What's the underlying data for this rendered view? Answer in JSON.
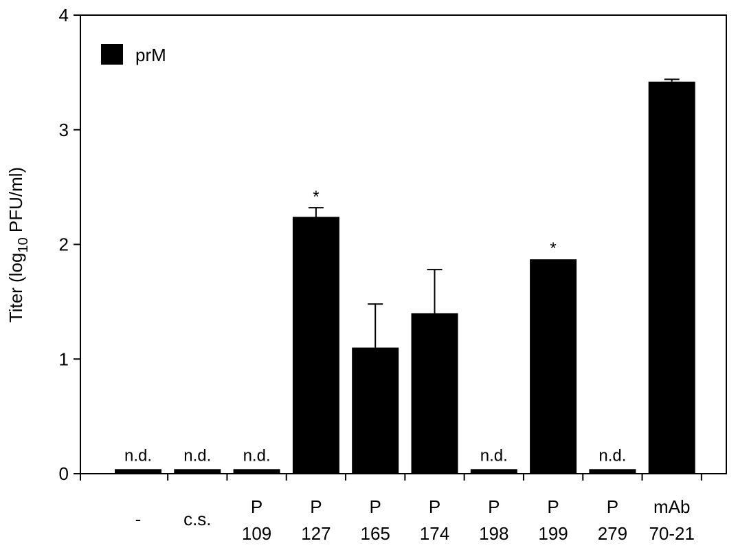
{
  "chart_data": {
    "type": "bar",
    "title": "",
    "xlabel": "",
    "ylabel": "Titer (log10 PFU/ml)",
    "ylabel_parts": {
      "pre": "Titer (log",
      "sub": "10",
      "post": " PFU/ml)"
    },
    "ylim": [
      0,
      4
    ],
    "yticks": [
      0,
      1,
      2,
      3,
      4
    ],
    "legend": {
      "position": "top-left",
      "entries": [
        "prM"
      ]
    },
    "bar_color": "#000000",
    "categories": [
      {
        "line1": "-",
        "line2": ""
      },
      {
        "line1": "c.s.",
        "line2": ""
      },
      {
        "line1": "P",
        "line2": "109"
      },
      {
        "line1": "P",
        "line2": "127"
      },
      {
        "line1": "P",
        "line2": "165"
      },
      {
        "line1": "P",
        "line2": "174"
      },
      {
        "line1": "P",
        "line2": "198"
      },
      {
        "line1": "P",
        "line2": "199"
      },
      {
        "line1": "P",
        "line2": "279"
      },
      {
        "line1": "mAb",
        "line2": "70-21"
      }
    ],
    "series": [
      {
        "name": "prM",
        "values": [
          0.04,
          0.04,
          0.04,
          2.24,
          1.1,
          1.4,
          0.04,
          1.87,
          0.04,
          3.42
        ],
        "errors": [
          0,
          0,
          0,
          0.08,
          0.38,
          0.38,
          0,
          0,
          0,
          0.02
        ],
        "annotations": [
          "n.d.",
          "n.d.",
          "n.d.",
          "*",
          "",
          "",
          "n.d.",
          "*",
          "n.d.",
          ""
        ]
      }
    ]
  }
}
